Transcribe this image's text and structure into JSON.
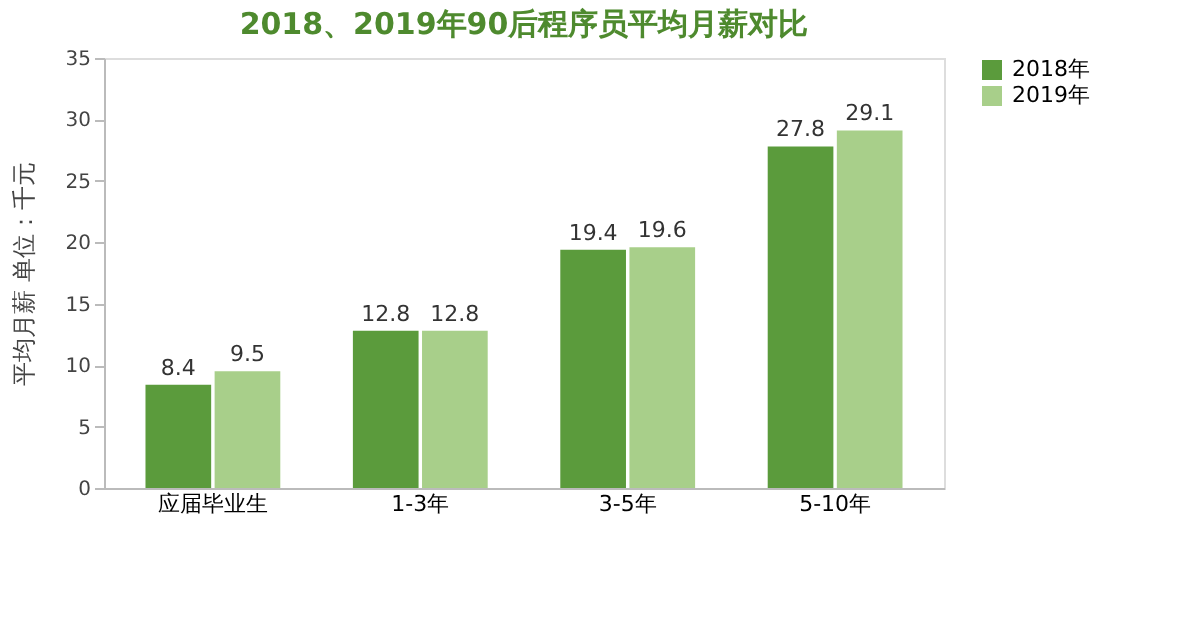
{
  "chart_data": {
    "type": "bar",
    "title": "2018、2019年90后程序员平均月薪对比",
    "ylabel": "平均月薪 单位：千元",
    "categories": [
      "应届毕业生",
      "1-3年",
      "3-5年",
      "5-10年"
    ],
    "series": [
      {
        "name": "2018年",
        "color": "#5b9b3c",
        "values": [
          8.4,
          12.8,
          19.4,
          27.8
        ]
      },
      {
        "name": "2019年",
        "color": "#a8cf8a",
        "values": [
          9.5,
          12.8,
          19.6,
          29.1
        ]
      }
    ],
    "ylim": [
      0,
      35
    ],
    "yticks": [
      0,
      5,
      10,
      15,
      20,
      25,
      30,
      35
    ],
    "grid": false,
    "legend": "right",
    "data_labels": true
  }
}
